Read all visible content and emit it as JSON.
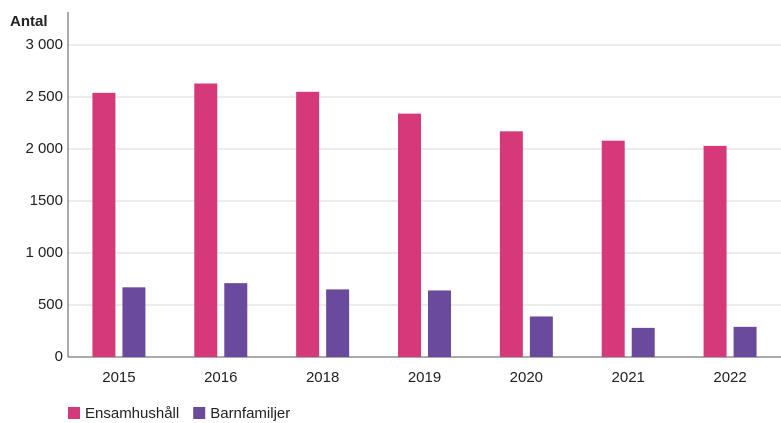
{
  "chart_data": {
    "type": "bar",
    "y_axis_label": "Antal",
    "categories": [
      "2015",
      "2016",
      "2018",
      "2019",
      "2020",
      "2021",
      "2022"
    ],
    "series": [
      {
        "name": "Ensamhushåll",
        "color": "#d6397a",
        "values": [
          2540,
          2630,
          2550,
          2340,
          2170,
          2080,
          2030
        ]
      },
      {
        "name": "Barnfamiljer",
        "color": "#6a4a9c",
        "values": [
          670,
          710,
          650,
          640,
          390,
          280,
          290
        ]
      }
    ],
    "ylim": [
      0,
      3000
    ],
    "yticks": [
      0,
      500,
      {
        "value": 1000,
        "label": "1 000"
      },
      1500,
      {
        "value": 2000,
        "label": "2 000"
      },
      {
        "value": 2500,
        "label": "2 500"
      },
      {
        "value": 3000,
        "label": "3 000"
      }
    ],
    "grid": true,
    "legend": "bottom-left"
  }
}
